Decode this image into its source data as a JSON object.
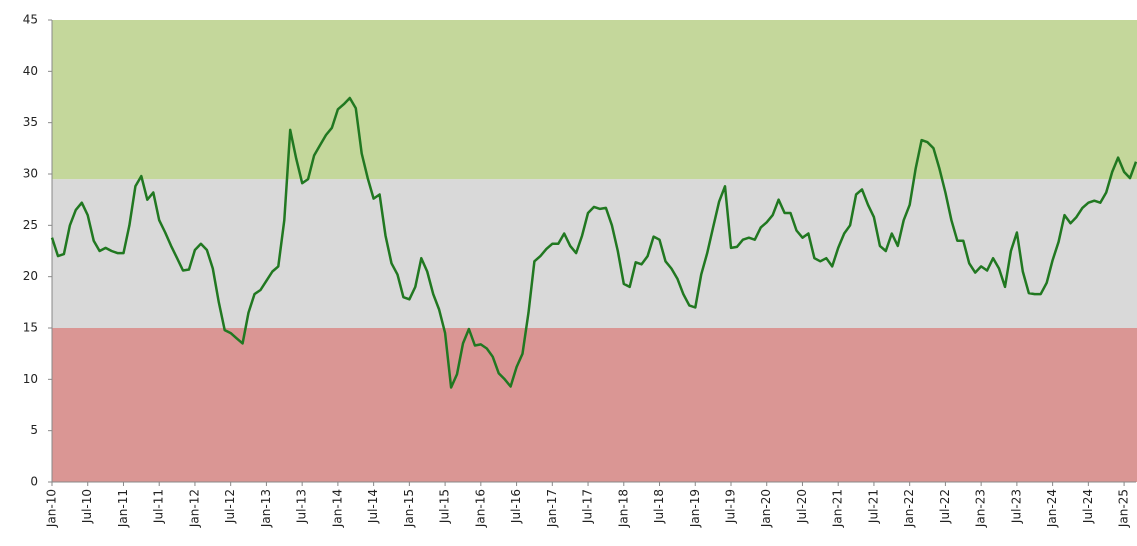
{
  "chart_data": {
    "type": "line",
    "categories": [
      "Jan-10",
      null,
      null,
      null,
      null,
      null,
      "Jul-10",
      null,
      null,
      null,
      null,
      null,
      "Jan-11",
      null,
      null,
      null,
      null,
      null,
      "Jul-11",
      null,
      null,
      null,
      null,
      null,
      "Jan-12",
      null,
      null,
      null,
      null,
      null,
      "Jul-12",
      null,
      null,
      null,
      null,
      null,
      "Jan-13",
      null,
      null,
      null,
      null,
      null,
      "Jul-13",
      null,
      null,
      null,
      null,
      null,
      "Jan-14",
      null,
      null,
      null,
      null,
      null,
      "Jul-14",
      null,
      null,
      null,
      null,
      null,
      "Jan-15",
      null,
      null,
      null,
      null,
      null,
      "Jul-15",
      null,
      null,
      null,
      null,
      null,
      "Jan-16",
      null,
      null,
      null,
      null,
      null,
      "Jul-16",
      null,
      null,
      null,
      null,
      null,
      "Jan-17",
      null,
      null,
      null,
      null,
      null,
      "Jul-17",
      null,
      null,
      null,
      null,
      null,
      "Jan-18",
      null,
      null,
      null,
      null,
      null,
      "Jul-18",
      null,
      null,
      null,
      null,
      null,
      "Jan-19",
      null,
      null,
      null,
      null,
      null,
      "Jul-19",
      null,
      null,
      null,
      null,
      null,
      "Jan-20",
      null,
      null,
      null,
      null,
      null,
      "Jul-20",
      null,
      null,
      null,
      null,
      null,
      "Jan-21",
      null,
      null,
      null,
      null,
      null,
      "Jul-21",
      null,
      null,
      null,
      null,
      null,
      "Jan-22",
      null,
      null,
      null,
      null,
      null,
      "Jul-22",
      null,
      null,
      null,
      null,
      null,
      "Jan-23",
      null,
      null,
      null,
      null,
      null,
      "Jul-23",
      null,
      null,
      null,
      null,
      null,
      "Jan-24",
      null,
      null,
      null,
      null,
      null,
      "Jul-24",
      null,
      null,
      null,
      null,
      null,
      "Jan-25",
      null,
      null
    ],
    "series": [
      {
        "color": "#217821",
        "values": [
          23.8,
          22,
          22.2,
          25,
          26.5,
          27.2,
          26,
          23.5,
          22.5,
          22.8,
          22.5,
          22.3,
          22.3,
          25,
          28.8,
          29.8,
          27.5,
          28.2,
          25.5,
          24.3,
          23,
          21.8,
          20.6,
          20.7,
          22.6,
          23.2,
          22.6,
          20.8,
          17.5,
          14.8,
          14.5,
          14,
          13.5,
          16.5,
          18.3,
          18.7,
          19.6,
          20.5,
          21,
          25.5,
          34.3,
          31.5,
          29.1,
          29.5,
          31.8,
          32.8,
          33.8,
          34.5,
          36.3,
          36.8,
          37.4,
          36.4,
          32,
          29.6,
          27.6,
          28,
          24,
          21.3,
          20.2,
          18,
          17.8,
          19,
          21.8,
          20.5,
          18.3,
          16.8,
          14.5,
          9.2,
          10.5,
          13.5,
          14.9,
          13.3,
          13.4,
          13,
          12.2,
          10.6,
          10,
          9.3,
          11.2,
          12.5,
          16.5,
          21.5,
          22,
          22.7,
          23.2,
          23.2,
          24.2,
          23,
          22.3,
          24,
          26.2,
          26.8,
          26.6,
          26.7,
          25,
          22.5,
          19.3,
          19,
          21.4,
          21.2,
          22,
          23.9,
          23.6,
          21.5,
          20.8,
          19.8,
          18.3,
          17.2,
          17,
          20.2,
          22.3,
          24.8,
          27.3,
          28.8,
          22.8,
          22.9,
          23.6,
          23.8,
          23.6,
          24.8,
          25.3,
          26,
          27.5,
          26.2,
          26.2,
          24.5,
          23.8,
          24.2,
          21.8,
          21.5,
          21.8,
          21,
          22.8,
          24.2,
          25,
          28,
          28.5,
          27,
          25.8,
          23,
          22.5,
          24.2,
          23,
          25.5,
          27,
          30.5,
          33.3,
          33.1,
          32.5,
          30.5,
          28.2,
          25.5,
          23.5,
          23.5,
          21.3,
          20.4,
          21,
          20.6,
          21.8,
          20.8,
          19,
          22.5,
          24.3,
          20.5,
          18.4,
          18.3,
          18.3,
          19.4,
          21.6,
          23.4,
          26,
          25.2,
          25.8,
          26.7,
          27.2,
          27.4,
          27.2,
          28.2,
          30.2,
          31.6,
          30.2,
          29.6,
          31.2
        ]
      }
    ],
    "bands": [
      {
        "from": 0,
        "to": 15,
        "color": "#da9694"
      },
      {
        "from": 15,
        "to": 29.5,
        "color": "#d9d9d9"
      },
      {
        "from": 29.5,
        "to": 45,
        "color": "#c4d79b"
      }
    ],
    "ylim": [
      0,
      45
    ],
    "yticks": [
      0,
      5,
      10,
      15,
      20,
      25,
      30,
      35,
      40,
      45
    ]
  }
}
